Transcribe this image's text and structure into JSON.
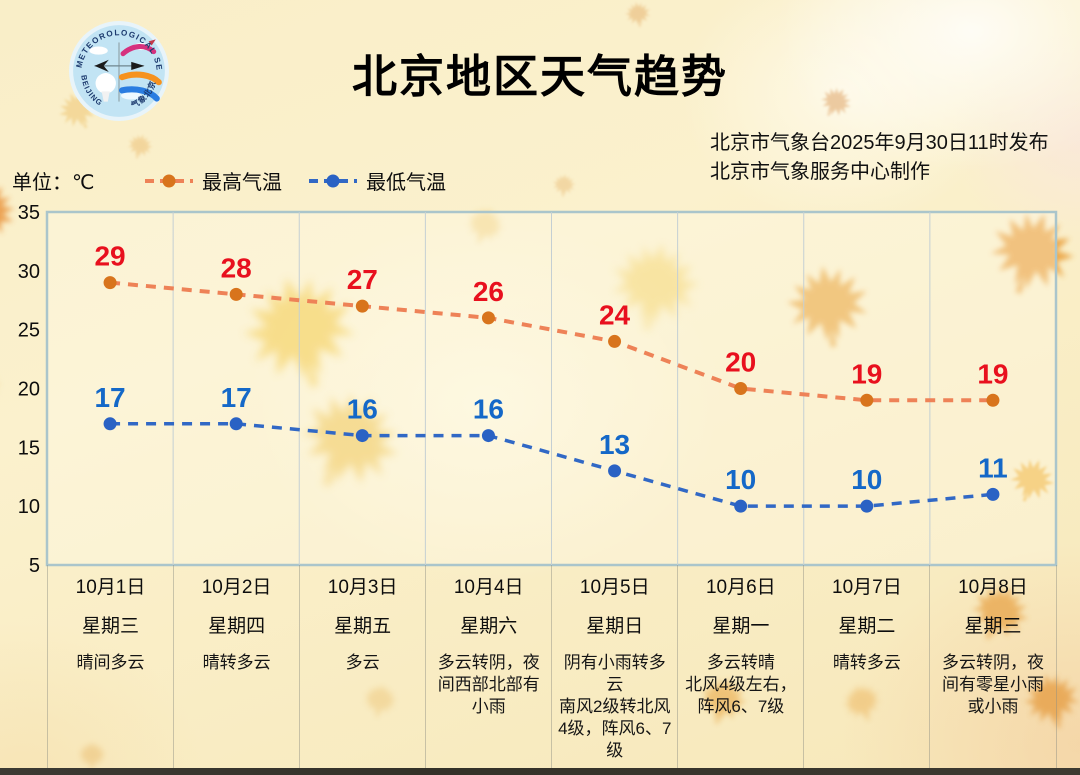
{
  "header": {
    "title": "北京地区天气趋势",
    "issue_line1": "北京市气象台2025年9月30日11时发布",
    "issue_line2": "北京市气象服务中心制作",
    "logo": {
      "arc_top_text": "METEOROLOGICAL SERVICE",
      "arc_bottom_left_text": "BEIJING",
      "arc_bottom_right_text": "气象北京"
    }
  },
  "legend": {
    "unit_label": "单位：℃"
  },
  "colors": {
    "plot_border": "#aac5cb",
    "gridline": "#c4cfd3",
    "max_line": "#ee8257",
    "max_point": "#d8741c",
    "max_value_label": "#e8101e",
    "min_line": "#3168c5",
    "min_point": "#2a62c4",
    "min_value_label": "#1468c8"
  },
  "chart_data": {
    "type": "line",
    "title": "北京地区天气趋势",
    "x": [
      "10月1日",
      "10月2日",
      "10月3日",
      "10月4日",
      "10月5日",
      "10月6日",
      "10月7日",
      "10月8日"
    ],
    "series": [
      {
        "name": "最高气温",
        "values": [
          29,
          28,
          27,
          26,
          24,
          20,
          19,
          19
        ],
        "line_color": "#ee8257",
        "point_color": "#d8741c",
        "value_color": "#e8101e",
        "line_style": "dashed"
      },
      {
        "name": "最低气温",
        "values": [
          17,
          17,
          16,
          16,
          13,
          10,
          10,
          11
        ],
        "line_color": "#3168c5",
        "point_color": "#2a62c4",
        "value_color": "#1468c8",
        "line_style": "dashed"
      }
    ],
    "ylabel": "单位：℃",
    "ylim": [
      5,
      35
    ],
    "yticks": [
      35,
      30,
      25,
      20,
      15,
      10,
      5
    ],
    "grid": "vertical-only",
    "legend_position": "top-left"
  },
  "table": {
    "days": [
      {
        "date": "10月1日",
        "weekday": "星期三",
        "weather": [
          "晴间多云"
        ]
      },
      {
        "date": "10月2日",
        "weekday": "星期四",
        "weather": [
          "晴转多云"
        ]
      },
      {
        "date": "10月3日",
        "weekday": "星期五",
        "weather": [
          "多云"
        ]
      },
      {
        "date": "10月4日",
        "weekday": "星期六",
        "weather": [
          "多云转阴，夜间西部北部有小雨"
        ]
      },
      {
        "date": "10月5日",
        "weekday": "星期日",
        "weather": [
          "阴有小雨转多云",
          "南风2级转北风4级，阵风6、7级"
        ]
      },
      {
        "date": "10月6日",
        "weekday": "星期一",
        "weather": [
          "多云转晴",
          "北风4级左右，阵风6、7级"
        ]
      },
      {
        "date": "10月7日",
        "weekday": "星期二",
        "weather": [
          "晴转多云"
        ]
      },
      {
        "date": "10月8日",
        "weekday": "星期三",
        "weather": [
          "多云转阴，夜间有零星小雨或小雨"
        ]
      }
    ]
  }
}
